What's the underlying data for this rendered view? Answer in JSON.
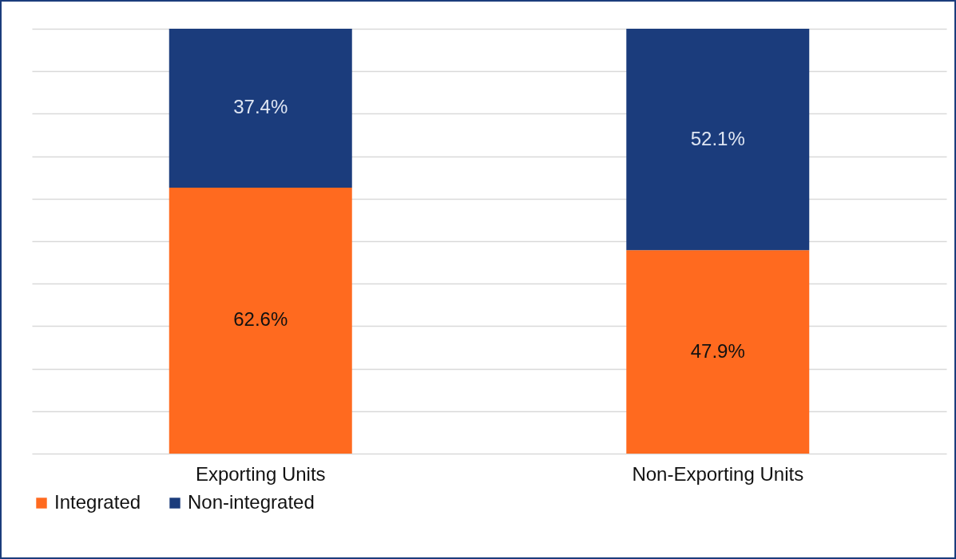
{
  "chart_data": {
    "type": "bar",
    "stacked": true,
    "categories": [
      "Exporting Units",
      "Non-Exporting Units"
    ],
    "series": [
      {
        "name": "Integrated",
        "color": "#ff6a1f",
        "values": [
          62.6,
          47.9
        ],
        "value_labels": [
          "62.6%",
          "47.9%"
        ]
      },
      {
        "name": "Non-integrated",
        "color": "#1b3c7c",
        "values": [
          37.4,
          52.1
        ],
        "value_labels": [
          "37.4%",
          "52.1%"
        ]
      }
    ],
    "ylim": [
      0,
      100
    ],
    "yticks": [
      {
        "value": 0,
        "label": null
      },
      {
        "value": 10,
        "label": null
      },
      {
        "value": 20,
        "label": null
      },
      {
        "value": 30,
        "label": null
      },
      {
        "value": 40,
        "label": null
      },
      {
        "value": 50,
        "label": null
      },
      {
        "value": 60,
        "label": null
      },
      {
        "value": 70,
        "label": null
      },
      {
        "value": 80,
        "label": null
      },
      {
        "value": 90,
        "label": null
      },
      {
        "value": 100,
        "label": null
      }
    ],
    "grid": "y",
    "legend": "bottom",
    "tick_labels": "x"
  }
}
